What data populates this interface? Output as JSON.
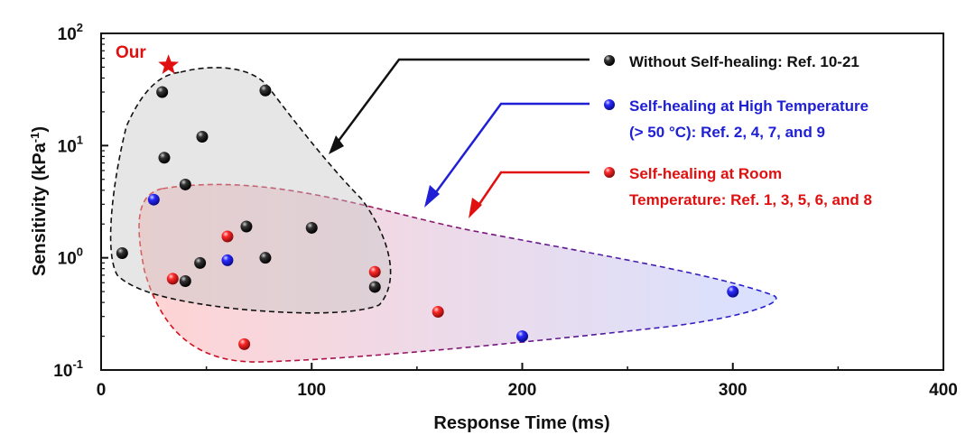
{
  "chart_data": {
    "type": "scatter",
    "xlabel": "Response Time (ms)",
    "ylabel": "Sensitivity (kPa",
    "ylabel_sup": "-1",
    "ylabel_close": ")",
    "xlim": [
      0,
      400
    ],
    "ylim": [
      0.1,
      100
    ],
    "yscale": "log",
    "xticks": [
      "0",
      "100",
      "200",
      "300",
      "400"
    ],
    "ytick_base": "10",
    "ytick_exps": [
      "-1",
      "0",
      "1",
      "2"
    ],
    "grid": false,
    "legend_position": "top-right",
    "series": [
      {
        "name": "Without Self-healing: Ref. 10-21",
        "color": "#111111",
        "points": [
          {
            "x": 10,
            "y": 1.1
          },
          {
            "x": 29,
            "y": 30
          },
          {
            "x": 30,
            "y": 7.8
          },
          {
            "x": 40,
            "y": 4.5
          },
          {
            "x": 40,
            "y": 0.62
          },
          {
            "x": 47,
            "y": 0.9
          },
          {
            "x": 48,
            "y": 12
          },
          {
            "x": 69,
            "y": 1.9
          },
          {
            "x": 78,
            "y": 31
          },
          {
            "x": 78,
            "y": 1.0
          },
          {
            "x": 100,
            "y": 1.85
          },
          {
            "x": 130,
            "y": 0.55
          }
        ]
      },
      {
        "name": "Self-healing at High Temperature (> 50 °C): Ref. 2, 4, 7, and 9",
        "label_lines": [
          "Self-healing at High Temperature",
          "(> 50 °C): Ref. 2, 4, 7, and 9"
        ],
        "color": "#1f1fd6",
        "points": [
          {
            "x": 25,
            "y": 3.3
          },
          {
            "x": 60,
            "y": 0.95
          },
          {
            "x": 200,
            "y": 0.2
          },
          {
            "x": 300,
            "y": 0.5
          }
        ]
      },
      {
        "name": "Self-healing at Room Temperature: Ref. 1, 3, 5, 6, and 8",
        "label_lines": [
          "Self-healing at Room",
          "Temperature: Ref. 1, 3, 5, 6, and 8"
        ],
        "color": "#e01010",
        "points": [
          {
            "x": 34,
            "y": 0.65
          },
          {
            "x": 60,
            "y": 1.55
          },
          {
            "x": 68,
            "y": 0.17
          },
          {
            "x": 130,
            "y": 0.75
          },
          {
            "x": 160,
            "y": 0.33
          }
        ]
      }
    ],
    "annotations": [
      {
        "text": "Our",
        "marker": "star",
        "color": "#e01010",
        "x": 32,
        "y": 52
      }
    ]
  }
}
